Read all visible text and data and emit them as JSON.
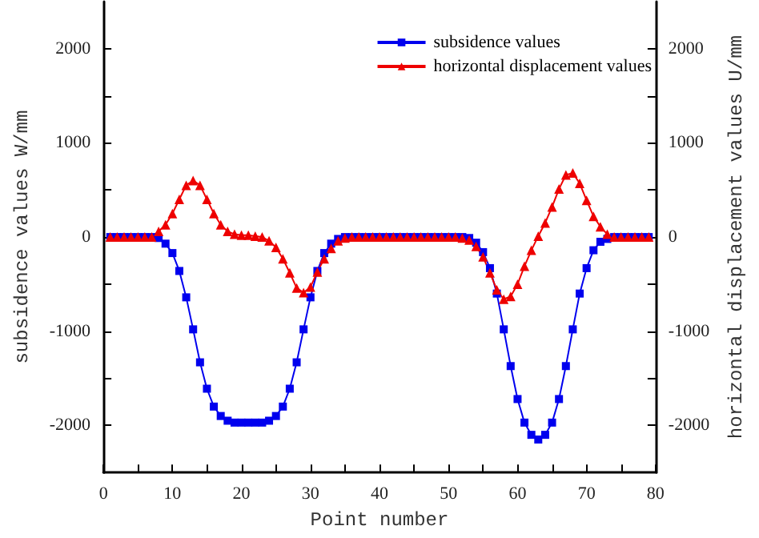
{
  "chart_data": {
    "type": "line",
    "xlabel": "Point number",
    "ylabel": "subsidence values W/mm",
    "y2label": "horizontal displacement values U/mm",
    "x": [
      1,
      2,
      3,
      4,
      5,
      6,
      7,
      8,
      9,
      10,
      11,
      12,
      13,
      14,
      15,
      16,
      17,
      18,
      19,
      20,
      21,
      22,
      23,
      24,
      25,
      26,
      27,
      28,
      29,
      30,
      31,
      32,
      33,
      34,
      35,
      36,
      37,
      38,
      39,
      40,
      41,
      42,
      43,
      44,
      45,
      46,
      47,
      48,
      49,
      50,
      51,
      52,
      53,
      54,
      55,
      56,
      57,
      58,
      59,
      60,
      61,
      62,
      63,
      64,
      65,
      66,
      67,
      68,
      69,
      70,
      71,
      72,
      73,
      74,
      75,
      76,
      77,
      78,
      79
    ],
    "series": [
      {
        "name": "subsidence values",
        "color": "#0000ee",
        "marker": "square",
        "values": [
          0,
          0,
          0,
          0,
          0,
          0,
          0,
          -10,
          -70,
          -170,
          -360,
          -640,
          -980,
          -1330,
          -1610,
          -1800,
          -1900,
          -1950,
          -1970,
          -1970,
          -1970,
          -1970,
          -1970,
          -1950,
          -1900,
          -1800,
          -1610,
          -1330,
          -980,
          -640,
          -360,
          -170,
          -70,
          -20,
          0,
          0,
          0,
          0,
          0,
          0,
          0,
          0,
          0,
          0,
          0,
          0,
          0,
          0,
          0,
          0,
          0,
          0,
          -10,
          -60,
          -160,
          -330,
          -600,
          -980,
          -1370,
          -1720,
          -1970,
          -2100,
          -2150,
          -2100,
          -1970,
          -1720,
          -1370,
          -980,
          -600,
          -330,
          -140,
          -50,
          -20,
          0,
          0,
          0,
          0,
          0,
          0
        ]
      },
      {
        "name": "horizontal displacement values",
        "color": "#ee0000",
        "marker": "triangle",
        "values": [
          0,
          0,
          0,
          0,
          0,
          0,
          0,
          60,
          130,
          250,
          400,
          550,
          600,
          550,
          400,
          250,
          130,
          60,
          30,
          20,
          20,
          10,
          0,
          -40,
          -110,
          -230,
          -380,
          -540,
          -590,
          -530,
          -370,
          -230,
          -120,
          -40,
          -10,
          0,
          0,
          0,
          0,
          0,
          0,
          0,
          0,
          0,
          0,
          0,
          0,
          0,
          0,
          0,
          0,
          -10,
          -30,
          -100,
          -210,
          -380,
          -560,
          -660,
          -630,
          -500,
          -310,
          -140,
          10,
          150,
          320,
          510,
          660,
          680,
          570,
          390,
          220,
          110,
          30,
          0,
          0,
          0,
          0,
          0,
          0
        ]
      }
    ],
    "xlim": [
      0,
      80
    ],
    "xticks": [
      0,
      10,
      20,
      30,
      40,
      50,
      60,
      70,
      80
    ],
    "ylim": [
      -2500,
      2500
    ],
    "yticks": [
      -2000,
      -1000,
      0,
      1000,
      2000
    ],
    "y2lim": [
      -2500,
      2500
    ],
    "y2ticks": [
      -2000,
      -1000,
      0,
      1000,
      2000
    ],
    "grid": false,
    "legend": "top right"
  }
}
